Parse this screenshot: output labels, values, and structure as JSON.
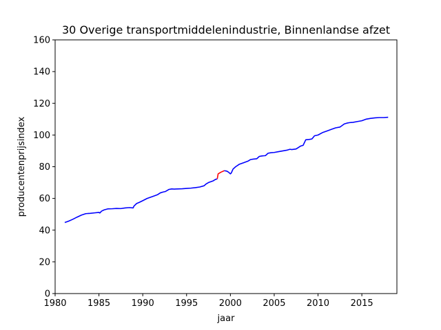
{
  "chart_data": {
    "type": "line",
    "title": "30 Overige transportmiddelenindustrie, Binnenlandse afzet",
    "xlabel": "jaar",
    "ylabel": "producentenprijsindex",
    "xlim": [
      1980,
      2019
    ],
    "ylim": [
      0,
      160
    ],
    "xticks": [
      "1980",
      "1985",
      "1990",
      "1995",
      "2000",
      "2005",
      "2010",
      "2015"
    ],
    "yticks": [
      "0",
      "20",
      "40",
      "60",
      "80",
      "100",
      "120",
      "140",
      "160"
    ],
    "grid": false,
    "series": [
      {
        "color": "#0000ff",
        "x": [
          1981.1,
          1981.5,
          1982.0,
          1982.5,
          1983.0,
          1983.5,
          1984.0,
          1984.5,
          1985.0,
          1985.1,
          1985.3,
          1985.6,
          1986.0,
          1986.5,
          1987.0,
          1987.5,
          1988.0,
          1988.5,
          1988.9,
          1989.0,
          1989.3,
          1989.6,
          1990.0,
          1990.5,
          1991.0,
          1991.3,
          1991.7,
          1992.0,
          1992.3,
          1992.6,
          1993.0,
          1993.3,
          1993.6,
          1994.0,
          1994.5,
          1995.0,
          1995.5,
          1996.0,
          1996.5,
          1997.0,
          1997.2,
          1997.5,
          1997.8,
          1998.0,
          1998.3,
          1998.5
        ],
        "values": [
          44.8,
          45.6,
          46.8,
          48.2,
          49.5,
          50.4,
          50.6,
          50.9,
          51.2,
          50.8,
          52.0,
          52.8,
          53.4,
          53.5,
          53.7,
          53.6,
          54.0,
          54.2,
          54.0,
          55.2,
          56.8,
          57.5,
          58.6,
          60.0,
          61.0,
          61.6,
          62.4,
          63.5,
          64.0,
          64.4,
          65.7,
          66.0,
          65.9,
          66.0,
          66.1,
          66.3,
          66.5,
          66.8,
          67.2,
          68.0,
          69.0,
          70.0,
          70.6,
          71.0,
          72.0,
          72.3
        ]
      },
      {
        "color": "#ff0000",
        "x": [
          1998.5,
          1998.6,
          1998.9,
          1999.1,
          1999.3
        ],
        "values": [
          72.3,
          75.5,
          76.5,
          77.0,
          77.5
        ]
      },
      {
        "color": "#0000ff",
        "x": [
          1999.3,
          1999.6,
          1999.8,
          2000.0,
          2000.1,
          2000.3,
          2000.6,
          2001.0,
          2001.5,
          2002.0,
          2002.3,
          2002.6,
          2003.0,
          2003.3,
          2003.6,
          2004.0,
          2004.3,
          2004.6,
          2005.0,
          2005.5,
          2006.0,
          2006.5,
          2006.8,
          2007.0,
          2007.5,
          2008.0,
          2008.3,
          2008.6,
          2009.0,
          2009.3,
          2009.6,
          2010.0,
          2010.5,
          2011.0,
          2011.5,
          2012.0,
          2012.5,
          2013.0,
          2013.3,
          2013.6,
          2014.0,
          2014.5,
          2015.0,
          2015.5,
          2016.0,
          2016.5,
          2017.0,
          2017.5,
          2018.0
        ],
        "values": [
          77.5,
          77.2,
          76.5,
          75.5,
          76.0,
          78.5,
          80.0,
          81.5,
          82.5,
          83.5,
          84.5,
          84.8,
          85.0,
          86.5,
          86.8,
          87.0,
          88.5,
          88.8,
          89.0,
          89.5,
          90.0,
          90.5,
          91.0,
          90.8,
          91.2,
          93.0,
          93.5,
          97.0,
          97.2,
          97.5,
          99.5,
          100.0,
          101.5,
          102.5,
          103.5,
          104.5,
          105.0,
          107.0,
          107.5,
          107.8,
          108.0,
          108.5,
          109.0,
          110.0,
          110.5,
          110.8,
          111.0,
          111.0,
          111.2
        ]
      }
    ]
  }
}
